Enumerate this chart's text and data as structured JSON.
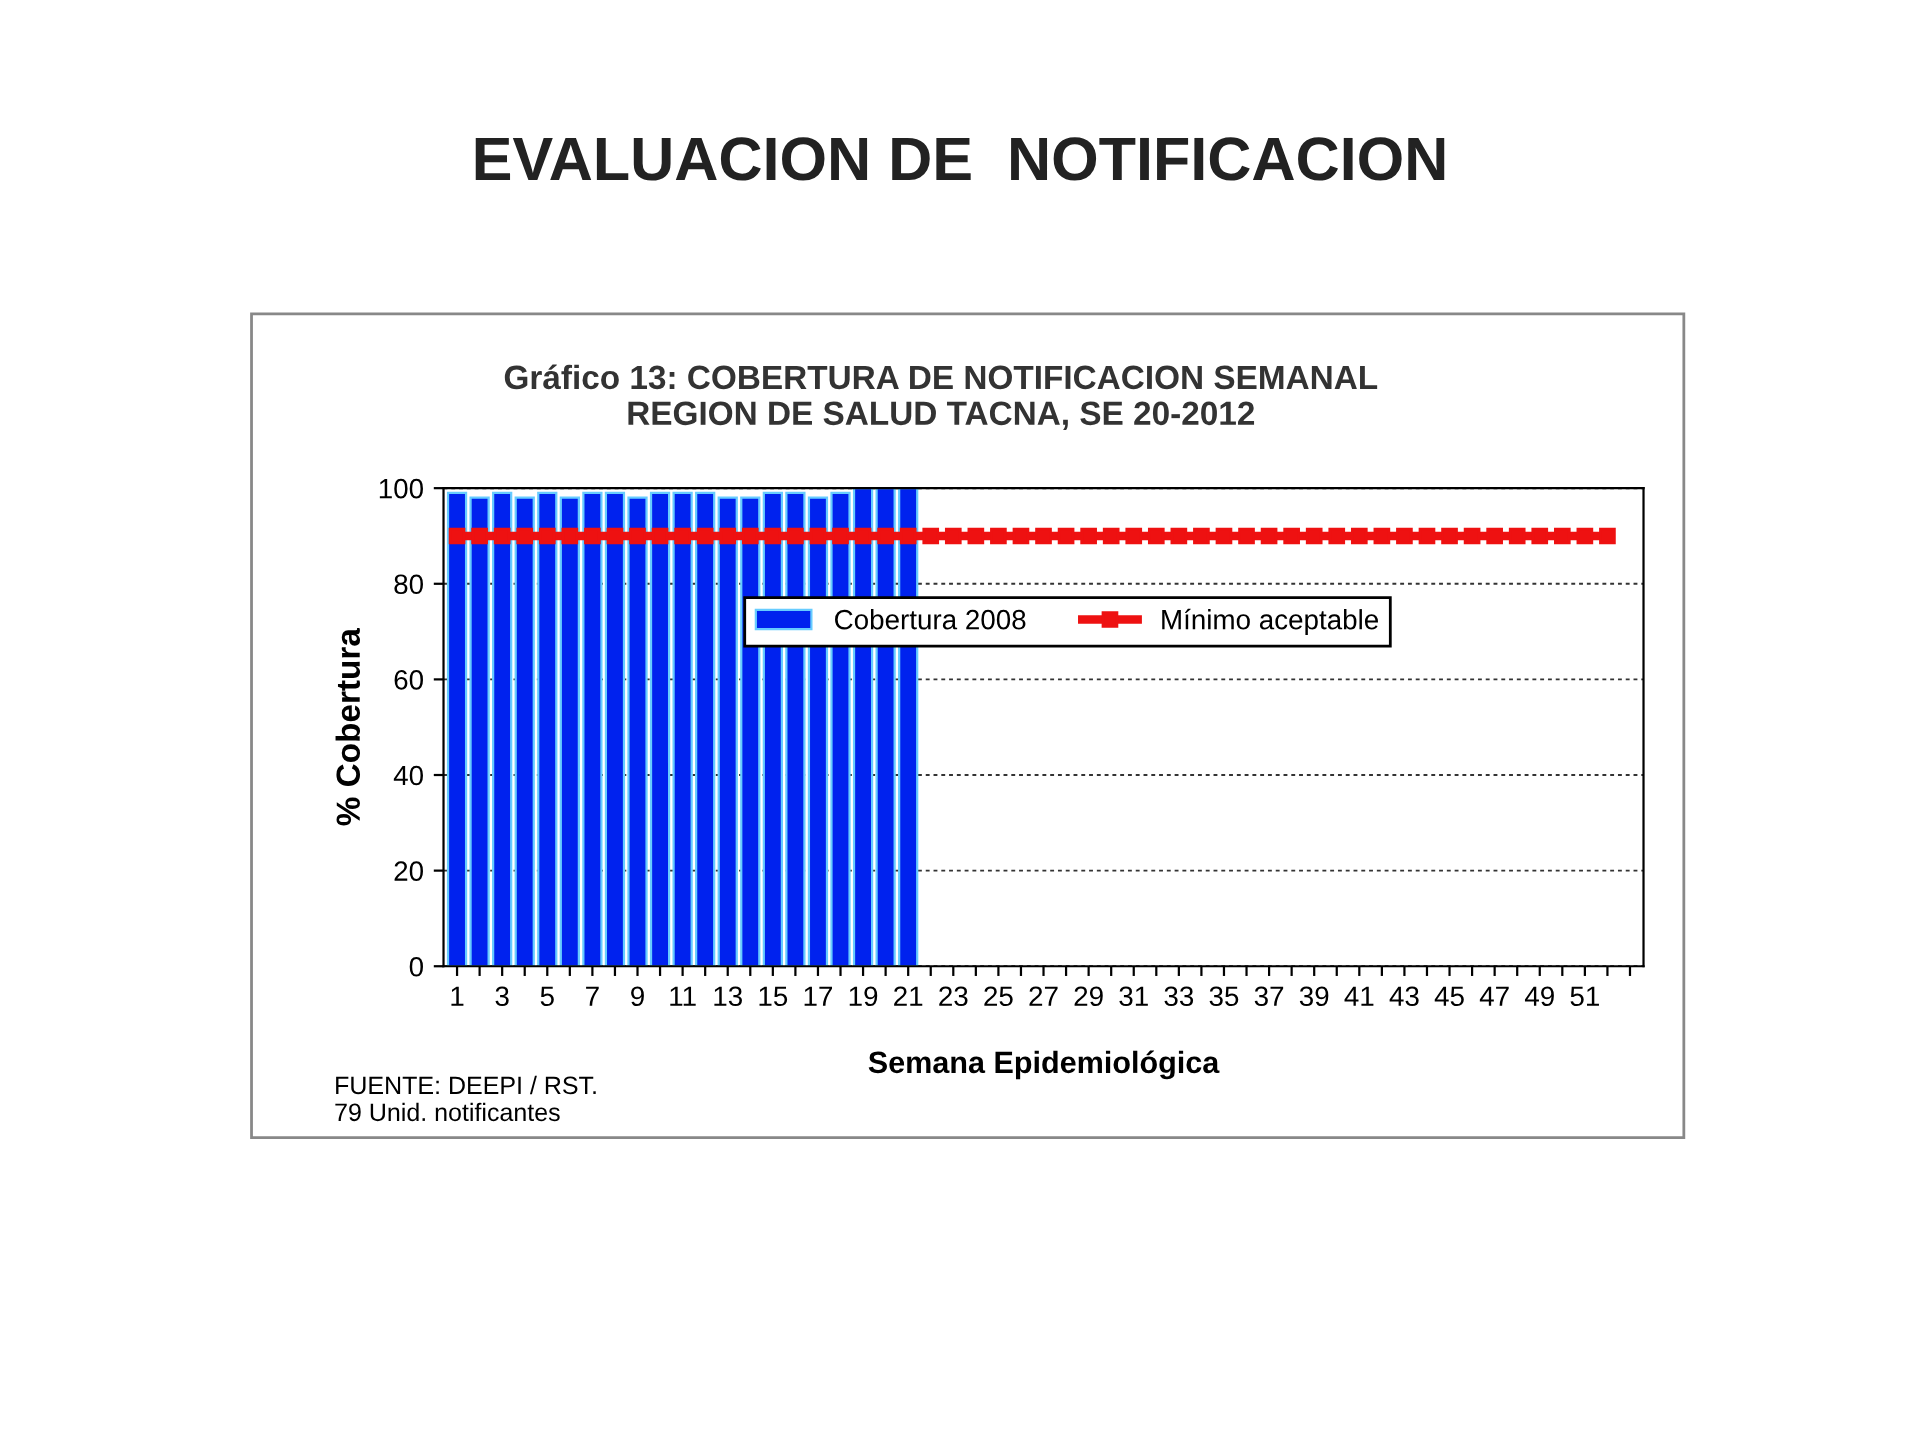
{
  "chart_data": {
    "type": "bar",
    "title": "EVALUACION DE  NOTIFICACION",
    "subtitle": "Gráfico 13: COBERTURA DE NOTIFICACION SEMANAL\nREGION DE SALUD TACNA, SE 20-2012",
    "xlabel": "Semana Epidemiológica",
    "ylabel": "% Cobertura",
    "categories": [
      "1",
      null,
      "3",
      null,
      "5",
      null,
      "7",
      null,
      "9",
      null,
      "11",
      null,
      "13",
      null,
      "15",
      null,
      "17",
      null,
      "19",
      null,
      "21",
      null,
      "23",
      null,
      "25",
      null,
      "27",
      null,
      "29",
      null,
      "31",
      null,
      "33",
      null,
      "35",
      null,
      "37",
      null,
      "39",
      null,
      "41",
      null,
      "43",
      null,
      "45",
      null,
      "47",
      null,
      "49",
      null,
      "51",
      null,
      null
    ],
    "series": [
      {
        "name": "Cobertura 2008",
        "color": "#0022ee",
        "values": [
          99,
          98,
          99,
          98,
          99,
          98,
          99,
          99,
          98,
          99,
          99,
          99,
          98,
          98,
          99,
          99,
          98,
          99,
          100,
          100,
          100,
          null,
          null,
          null,
          null,
          null,
          null,
          null,
          null,
          null,
          null,
          null,
          null,
          null,
          null,
          null,
          null,
          null,
          null,
          null,
          null,
          null,
          null,
          null,
          null,
          null,
          null,
          null,
          null,
          null,
          null,
          null,
          null
        ]
      },
      {
        "name": "Mínimo aceptable",
        "type": "line",
        "color": "#ee1111",
        "marker": "square",
        "line_style": "solid",
        "values": [
          90,
          90,
          90,
          90,
          90,
          90,
          90,
          90,
          90,
          90,
          90,
          90,
          90,
          90,
          90,
          90,
          90,
          90,
          90,
          90,
          90,
          90,
          90,
          90,
          90,
          90,
          90,
          90,
          90,
          90,
          90,
          90,
          90,
          90,
          90,
          90,
          90,
          90,
          90,
          90,
          90,
          90,
          90,
          90,
          90,
          90,
          90,
          90,
          90,
          90,
          90,
          90,
          null
        ]
      }
    ],
    "ylim": [
      0,
      100
    ],
    "yticks": [
      0,
      20,
      40,
      60,
      80,
      100
    ],
    "grid": "y",
    "legend": "top",
    "annotations": [
      "FUENTE: DEEPI / RST.\n79 Unid. notificantes"
    ]
  }
}
